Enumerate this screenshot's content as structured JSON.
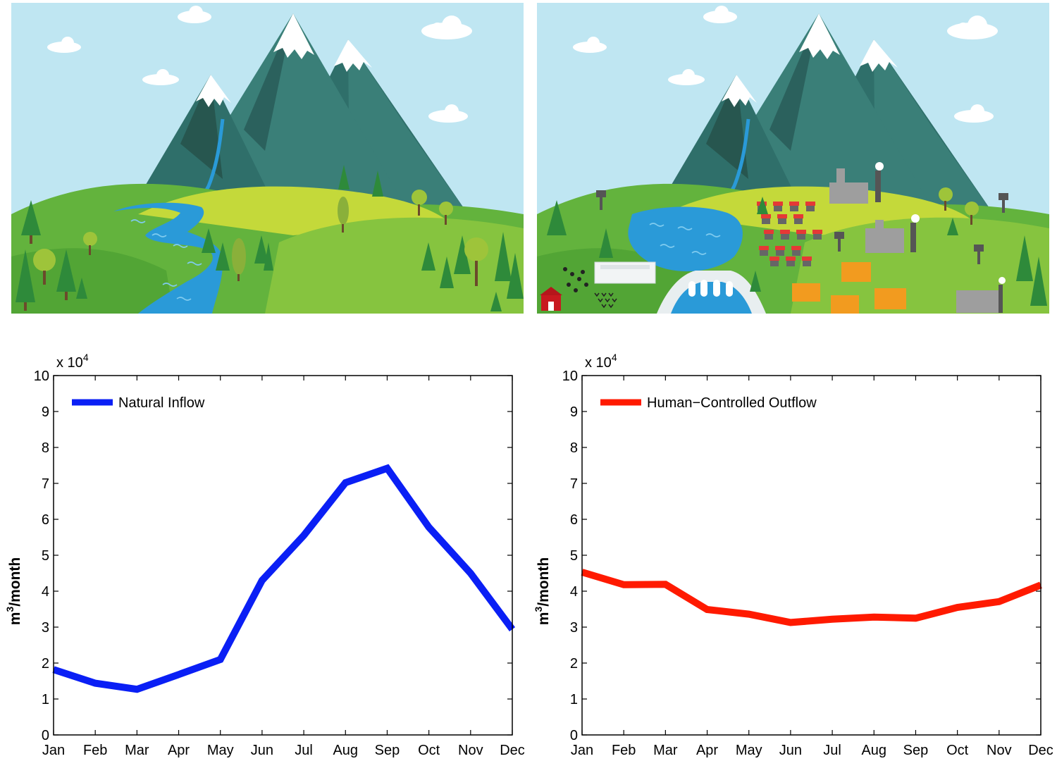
{
  "scenes": [
    {
      "name": "natural-landscape",
      "elements": [
        "mountains",
        "river",
        "trees",
        "clouds"
      ]
    },
    {
      "name": "developed-landscape",
      "elements": [
        "mountains",
        "reservoir",
        "dam",
        "hydropower-plant",
        "houses",
        "factories",
        "apartment-buildings",
        "water-towers",
        "cattle",
        "barn",
        "crops"
      ]
    }
  ],
  "chart_data": [
    {
      "type": "line",
      "x": [
        "Jan",
        "Feb",
        "Mar",
        "Apr",
        "May",
        "Jun",
        "Jul",
        "Aug",
        "Sep",
        "Oct",
        "Nov",
        "Dec"
      ],
      "series": [
        {
          "name": "Natural Inflow",
          "color": "#0a1ff5",
          "values": [
            18200,
            14400,
            12700,
            16800,
            21000,
            43000,
            55500,
            70200,
            74200,
            57800,
            45000,
            29400
          ]
        }
      ],
      "ylabel_base": "m",
      "ylabel_sup": "3",
      "ylabel_rest": "/month",
      "multiplier_base": "x 10",
      "multiplier_sup": "4",
      "ylim": [
        0,
        100000
      ],
      "yticks": [
        0,
        1,
        2,
        3,
        4,
        5,
        6,
        7,
        8,
        9,
        10
      ],
      "grid": false,
      "legend_position": "top-left"
    },
    {
      "type": "line",
      "x": [
        "Jan",
        "Feb",
        "Mar",
        "Apr",
        "May",
        "Jun",
        "Jul",
        "Aug",
        "Sep",
        "Oct",
        "Nov",
        "Dec"
      ],
      "series": [
        {
          "name": "Human−Controlled Outflow",
          "color": "#ff1a00",
          "values": [
            45300,
            41800,
            41900,
            34900,
            33600,
            31300,
            32200,
            32800,
            32500,
            35500,
            37100,
            41700
          ]
        }
      ],
      "ylabel_base": "m",
      "ylabel_sup": "3",
      "ylabel_rest": "/month",
      "multiplier_base": "x 10",
      "multiplier_sup": "4",
      "ylim": [
        0,
        100000
      ],
      "yticks": [
        0,
        1,
        2,
        3,
        4,
        5,
        6,
        7,
        8,
        9,
        10
      ],
      "grid": false,
      "legend_position": "top-left"
    }
  ]
}
